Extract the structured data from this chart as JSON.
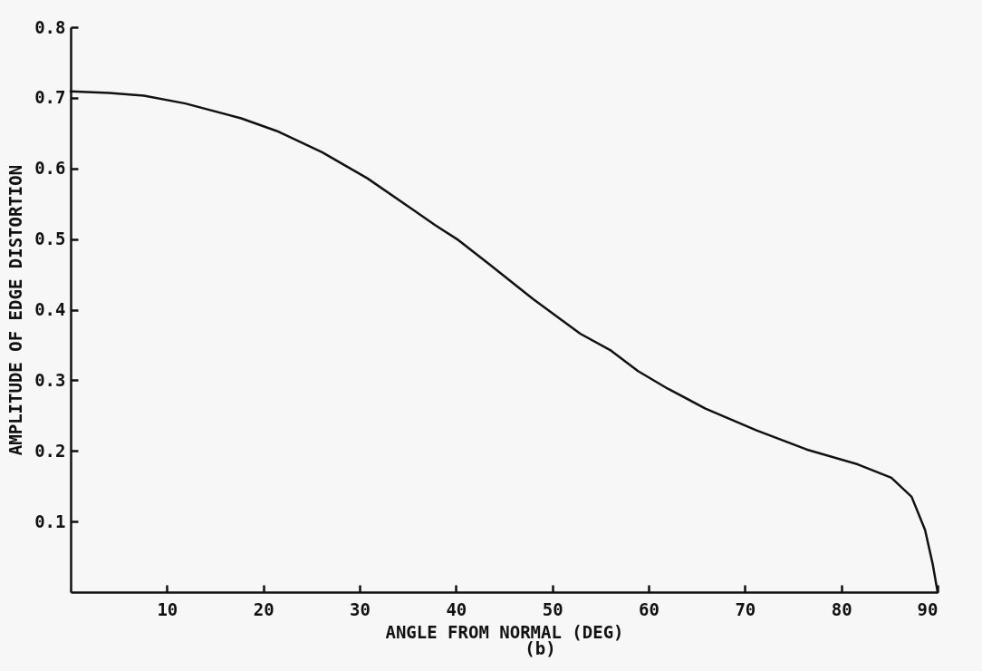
{
  "chart_data": {
    "type": "line",
    "xlabel": "ANGLE FROM NORMAL (DEG)",
    "ylabel": "AMPLITUDE OF EDGE DISTORTION",
    "annotations": [
      "(b)"
    ],
    "x": [
      0,
      4,
      7.6,
      11.9,
      17.7,
      21.4,
      26.1,
      30.8,
      35.5,
      37.8,
      40.2,
      43.5,
      48,
      52.9,
      56.1,
      58.9,
      62,
      65.9,
      71.2,
      76.4,
      81.7,
      85.2,
      87.3,
      88.7,
      89.5,
      90
    ],
    "series": [
      {
        "color": "#111111",
        "values": [
          0.709,
          0.707,
          0.703,
          0.692,
          0.671,
          0.653,
          0.623,
          0.586,
          0.542,
          0.52,
          0.499,
          0.464,
          0.415,
          0.366,
          0.342,
          0.313,
          0.288,
          0.26,
          0.229,
          0.202,
          0.181,
          0.162,
          0.135,
          0.088,
          0.039,
          0
        ]
      }
    ],
    "xlim": [
      0,
      90
    ],
    "xticks": [
      10,
      20,
      30,
      40,
      50,
      60,
      70,
      80,
      90
    ],
    "ylim": [
      0,
      0.8
    ],
    "yticks": [
      0.1,
      0.2,
      0.3,
      0.4,
      0.5,
      0.6,
      0.7,
      0.8
    ],
    "grid": false,
    "marker": "none",
    "line_style": "solid"
  }
}
